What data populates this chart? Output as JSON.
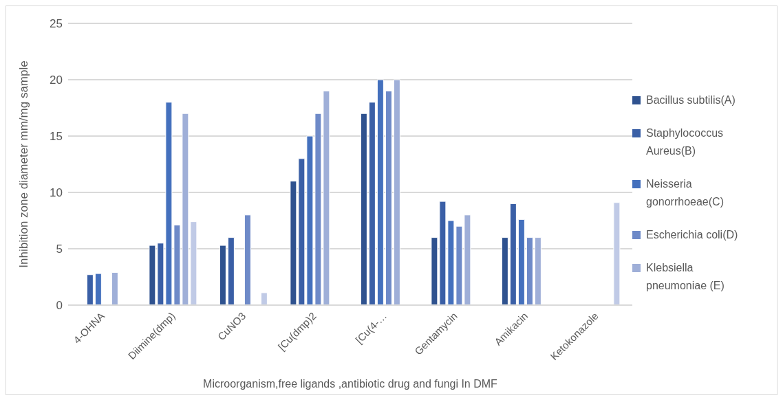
{
  "chart_data": {
    "type": "bar",
    "xlabel": "Microorganism,free ligands ,antibiotic drug and fungi In DMF",
    "ylabel": "Inhibition zone diameter mm/mg sample",
    "categories": [
      "4-OHNA",
      "Diimine(dmp)",
      "CuNO3",
      "[Cu(dmp)2",
      "[Cu(4-…",
      "Gentamycin",
      "Amikacin",
      "Ketokonazole"
    ],
    "series": [
      {
        "name": "Bacillus subtilis(A)",
        "color": "#2f528f",
        "values": [
          null,
          5.3,
          5.3,
          11,
          17,
          6,
          6,
          null
        ]
      },
      {
        "name": "Staphylococcus Aureus(B)",
        "color": "#3a5fa6",
        "values": [
          2.7,
          5.5,
          6,
          13,
          18,
          9.2,
          9,
          null
        ]
      },
      {
        "name": "Neisseria gonorrhoeae(C)",
        "color": "#4470bd",
        "values": [
          2.8,
          18,
          null,
          15,
          20,
          7.5,
          7.6,
          null
        ]
      },
      {
        "name": "Escherichia coli(D)",
        "color": "#6e8ac8",
        "values": [
          null,
          7.1,
          8,
          17,
          19,
          7,
          6,
          null
        ]
      },
      {
        "name": "Klebsiella pneumoniae (E)",
        "color": "#9fafd8",
        "values": [
          2.9,
          17,
          null,
          19,
          20,
          8,
          6,
          null
        ]
      },
      {
        "color": "#c0cae6",
        "values": [
          null,
          7.4,
          1.1,
          null,
          null,
          null,
          null,
          9.1
        ]
      }
    ],
    "ylim": [
      0,
      25
    ],
    "yticks": [
      0,
      5,
      10,
      15,
      20,
      25
    ],
    "grid": "y",
    "legend": "right"
  }
}
